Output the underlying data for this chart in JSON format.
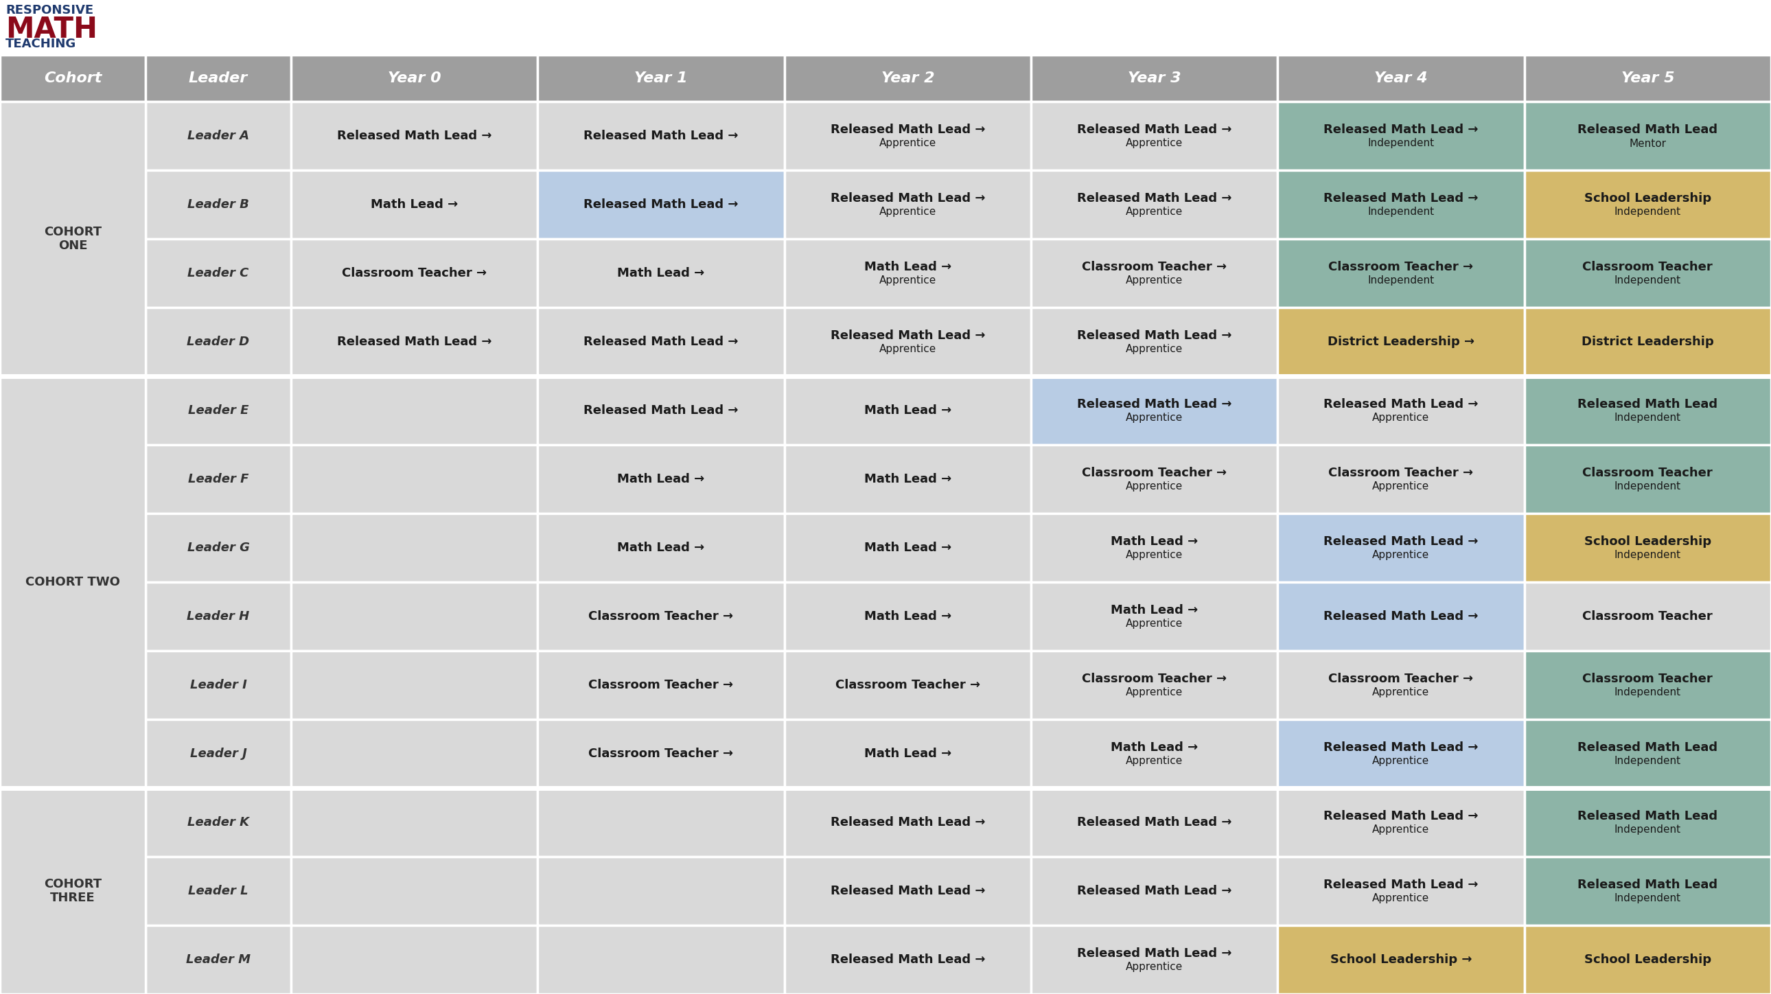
{
  "header": [
    "Cohort",
    "Leader",
    "Year 0",
    "Year 1",
    "Year 2",
    "Year 3",
    "Year 4",
    "Year 5"
  ],
  "header_bg": "#9e9e9e",
  "header_fg": "#ffffff",
  "cohort_starts": [
    0,
    4,
    10
  ],
  "cohort_sizes": [
    4,
    6,
    3
  ],
  "cohort_names": [
    "COHORT\nONE",
    "COHORT TWO",
    "COHORT\nTHREE"
  ],
  "rows": [
    {
      "leader": "Leader A",
      "year0": {
        "text": "Released Math Lead →",
        "bg": "#d9d9d9"
      },
      "year1": {
        "text": "Released Math Lead →",
        "bg": "#d9d9d9"
      },
      "year2": {
        "text": "Released Math Lead →\nApprentice",
        "bg": "#d9d9d9"
      },
      "year3": {
        "text": "Released Math Lead →\nApprentice",
        "bg": "#d9d9d9"
      },
      "year4": {
        "text": "Released Math Lead →\nIndependent",
        "bg": "#8db4a7"
      },
      "year5": {
        "text": "Released Math Lead\nMentor",
        "bg": "#8db4a7"
      }
    },
    {
      "leader": "Leader B",
      "year0": {
        "text": "Math Lead →",
        "bg": "#d9d9d9"
      },
      "year1": {
        "text": "Released Math Lead →",
        "bg": "#b8cce4"
      },
      "year2": {
        "text": "Released Math Lead →\nApprentice",
        "bg": "#d9d9d9"
      },
      "year3": {
        "text": "Released Math Lead →\nApprentice",
        "bg": "#d9d9d9"
      },
      "year4": {
        "text": "Released Math Lead →\nIndependent",
        "bg": "#8db4a7"
      },
      "year5": {
        "text": "School Leadership\nIndependent",
        "bg": "#d4b96b"
      }
    },
    {
      "leader": "Leader C",
      "year0": {
        "text": "Classroom Teacher →",
        "bg": "#d9d9d9"
      },
      "year1": {
        "text": "Math Lead →",
        "bg": "#d9d9d9"
      },
      "year2": {
        "text": "Math Lead →\nApprentice",
        "bg": "#d9d9d9"
      },
      "year3": {
        "text": "Classroom Teacher →\nApprentice",
        "bg": "#d9d9d9"
      },
      "year4": {
        "text": "Classroom Teacher →\nIndependent",
        "bg": "#8db4a7"
      },
      "year5": {
        "text": "Classroom Teacher\nIndependent",
        "bg": "#8db4a7"
      }
    },
    {
      "leader": "Leader D",
      "year0": {
        "text": "Released Math Lead →",
        "bg": "#d9d9d9"
      },
      "year1": {
        "text": "Released Math Lead →",
        "bg": "#d9d9d9"
      },
      "year2": {
        "text": "Released Math Lead →\nApprentice",
        "bg": "#d9d9d9"
      },
      "year3": {
        "text": "Released Math Lead →\nApprentice",
        "bg": "#d9d9d9"
      },
      "year4": {
        "text": "District Leadership →",
        "bg": "#d4b96b"
      },
      "year5": {
        "text": "District Leadership",
        "bg": "#d4b96b"
      }
    },
    {
      "leader": "Leader E",
      "year0": {
        "text": "",
        "bg": "#d9d9d9"
      },
      "year1": {
        "text": "Released Math Lead →",
        "bg": "#d9d9d9"
      },
      "year2": {
        "text": "Math Lead →",
        "bg": "#d9d9d9"
      },
      "year3": {
        "text": "Released Math Lead →\nApprentice",
        "bg": "#b8cce4"
      },
      "year4": {
        "text": "Released Math Lead →\nApprentice",
        "bg": "#d9d9d9"
      },
      "year5": {
        "text": "Released Math Lead\nIndependent",
        "bg": "#8db4a7"
      }
    },
    {
      "leader": "Leader F",
      "year0": {
        "text": "",
        "bg": "#d9d9d9"
      },
      "year1": {
        "text": "Math Lead →",
        "bg": "#d9d9d9"
      },
      "year2": {
        "text": "Math Lead →",
        "bg": "#d9d9d9"
      },
      "year3": {
        "text": "Classroom Teacher →\nApprentice",
        "bg": "#d9d9d9"
      },
      "year4": {
        "text": "Classroom Teacher →\nApprentice",
        "bg": "#d9d9d9"
      },
      "year5": {
        "text": "Classroom Teacher\nIndependent",
        "bg": "#8db4a7"
      }
    },
    {
      "leader": "Leader G",
      "year0": {
        "text": "",
        "bg": "#d9d9d9"
      },
      "year1": {
        "text": "Math Lead →",
        "bg": "#d9d9d9"
      },
      "year2": {
        "text": "Math Lead →",
        "bg": "#d9d9d9"
      },
      "year3": {
        "text": "Math Lead →\nApprentice",
        "bg": "#d9d9d9"
      },
      "year4": {
        "text": "Released Math Lead →\nApprentice",
        "bg": "#b8cce4"
      },
      "year5": {
        "text": "School Leadership\nIndependent",
        "bg": "#d4b96b"
      }
    },
    {
      "leader": "Leader H",
      "year0": {
        "text": "",
        "bg": "#d9d9d9"
      },
      "year1": {
        "text": "Classroom Teacher →",
        "bg": "#d9d9d9"
      },
      "year2": {
        "text": "Math Lead →",
        "bg": "#d9d9d9"
      },
      "year3": {
        "text": "Math Lead →\nApprentice",
        "bg": "#d9d9d9"
      },
      "year4": {
        "text": "Released Math Lead →",
        "bg": "#b8cce4"
      },
      "year5": {
        "text": "Classroom Teacher",
        "bg": "#d9d9d9"
      }
    },
    {
      "leader": "Leader I",
      "year0": {
        "text": "",
        "bg": "#d9d9d9"
      },
      "year1": {
        "text": "Classroom Teacher →",
        "bg": "#d9d9d9"
      },
      "year2": {
        "text": "Classroom Teacher →",
        "bg": "#d9d9d9"
      },
      "year3": {
        "text": "Classroom Teacher →\nApprentice",
        "bg": "#d9d9d9"
      },
      "year4": {
        "text": "Classroom Teacher →\nApprentice",
        "bg": "#d9d9d9"
      },
      "year5": {
        "text": "Classroom Teacher\nIndependent",
        "bg": "#8db4a7"
      }
    },
    {
      "leader": "Leader J",
      "year0": {
        "text": "",
        "bg": "#d9d9d9"
      },
      "year1": {
        "text": "Classroom Teacher →",
        "bg": "#d9d9d9"
      },
      "year2": {
        "text": "Math Lead →",
        "bg": "#d9d9d9"
      },
      "year3": {
        "text": "Math Lead →\nApprentice",
        "bg": "#d9d9d9"
      },
      "year4": {
        "text": "Released Math Lead →\nApprentice",
        "bg": "#b8cce4"
      },
      "year5": {
        "text": "Released Math Lead\nIndependent",
        "bg": "#8db4a7"
      }
    },
    {
      "leader": "Leader K",
      "year0": {
        "text": "",
        "bg": "#d9d9d9"
      },
      "year1": {
        "text": "",
        "bg": "#d9d9d9"
      },
      "year2": {
        "text": "Released Math Lead →",
        "bg": "#d9d9d9"
      },
      "year3": {
        "text": "Released Math Lead →",
        "bg": "#d9d9d9"
      },
      "year4": {
        "text": "Released Math Lead →\nApprentice",
        "bg": "#d9d9d9"
      },
      "year5": {
        "text": "Released Math Lead\nIndependent",
        "bg": "#8db4a7"
      }
    },
    {
      "leader": "Leader L",
      "year0": {
        "text": "",
        "bg": "#d9d9d9"
      },
      "year1": {
        "text": "",
        "bg": "#d9d9d9"
      },
      "year2": {
        "text": "Released Math Lead →",
        "bg": "#d9d9d9"
      },
      "year3": {
        "text": "Released Math Lead →",
        "bg": "#d9d9d9"
      },
      "year4": {
        "text": "Released Math Lead →\nApprentice",
        "bg": "#d9d9d9"
      },
      "year5": {
        "text": "Released Math Lead\nIndependent",
        "bg": "#8db4a7"
      }
    },
    {
      "leader": "Leader M",
      "year0": {
        "text": "",
        "bg": "#d9d9d9"
      },
      "year1": {
        "text": "",
        "bg": "#d9d9d9"
      },
      "year2": {
        "text": "Released Math Lead →",
        "bg": "#d9d9d9"
      },
      "year3": {
        "text": "Released Math Lead →\nApprentice",
        "bg": "#d9d9d9"
      },
      "year4": {
        "text": "School Leadership →",
        "bg": "#d4b96b"
      },
      "year5": {
        "text": "School Leadership",
        "bg": "#d4b96b"
      }
    }
  ],
  "bg_color": "#ffffff",
  "border_color": "#ffffff",
  "border_width": 2.5
}
